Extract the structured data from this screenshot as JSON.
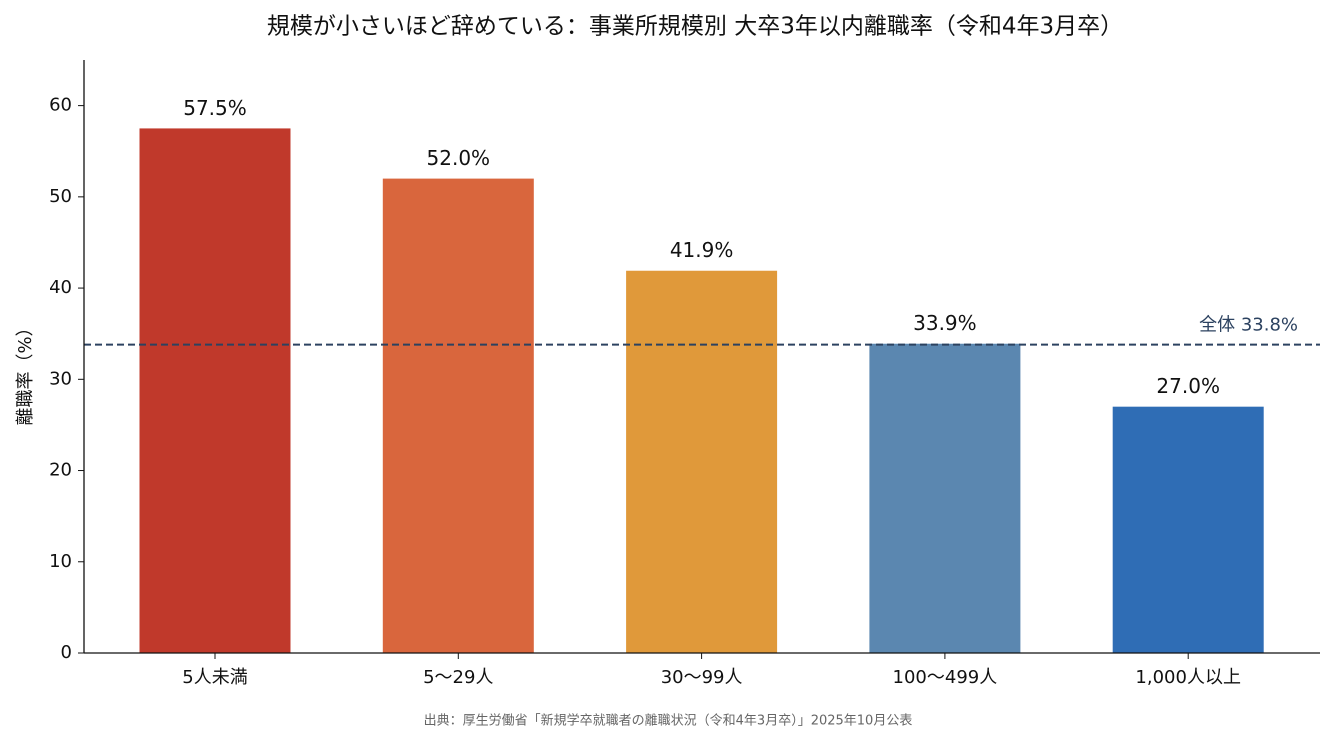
{
  "chart_data": {
    "type": "bar",
    "title": "規模が小さいほど辞めている：事業所規模別 大卒3年以内離職率（令和4年3月卒）",
    "y_label": "離職率（%）",
    "categories": [
      "5人未満",
      "5〜29人",
      "30〜99人",
      "100〜499人",
      "1,000人以上"
    ],
    "values": [
      57.5,
      52.0,
      41.9,
      33.9,
      27.0
    ],
    "value_labels": [
      "57.5%",
      "52.0%",
      "41.9%",
      "33.9%",
      "27.0%"
    ],
    "colors": [
      "#c0392b",
      "#d9663d",
      "#e0993a",
      "#5b87b0",
      "#2f6db5"
    ],
    "reference_line": {
      "value": 33.8,
      "label": "全体 33.8%",
      "color": "#2c4260"
    },
    "ylim": [
      0,
      65
    ],
    "yticks": [
      0,
      10,
      20,
      30,
      40,
      50,
      60
    ],
    "source": "出典：厚生労働省「新規学卒就職者の離職状況（令和4年3月卒）」2025年10月公表"
  }
}
